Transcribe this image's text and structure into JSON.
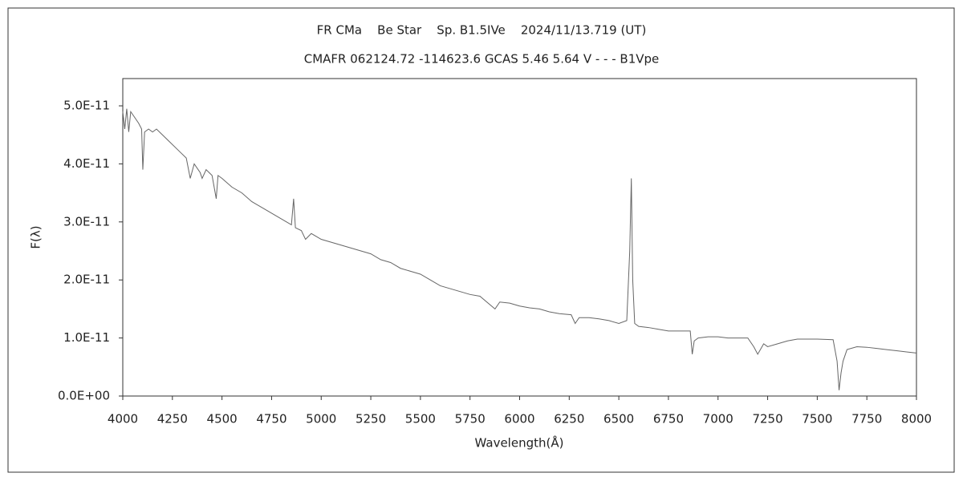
{
  "chart_data": {
    "type": "line",
    "title": "FR CMa    Be Star    Sp. B1.5IVe    2024/11/13.719 (UT)",
    "subtitle": "CMAFR 062124.72 -114623.6 GCAS 5.46 5.64 V - - - B1Vpe",
    "x_label": "Wavelength(Å)",
    "y_label": "F(λ)",
    "xlim": [
      4000,
      8000
    ],
    "ylim": [
      0,
      5.47e-11
    ],
    "xticks": [
      4000,
      4250,
      4500,
      4750,
      5000,
      5250,
      5500,
      5750,
      6000,
      6250,
      6500,
      6750,
      7000,
      7250,
      7500,
      7750,
      8000
    ],
    "yticks": [
      {
        "value": 0,
        "label": "0.0E+00"
      },
      {
        "value": 1e-11,
        "label": "1.0E-11"
      },
      {
        "value": 2e-11,
        "label": "2.0E-11"
      },
      {
        "value": 3e-11,
        "label": "3.0E-11"
      },
      {
        "value": 4e-11,
        "label": "4.0E-11"
      },
      {
        "value": 5e-11,
        "label": "5.0E-11"
      }
    ],
    "grid": false,
    "series": [
      {
        "color": "#666666",
        "x": [
          4000,
          4010,
          4020,
          4030,
          4040,
          4060,
          4080,
          4095,
          4101,
          4110,
          4130,
          4150,
          4170,
          4200,
          4230,
          4260,
          4290,
          4320,
          4340,
          4360,
          4390,
          4400,
          4420,
          4450,
          4471,
          4480,
          4500,
          4550,
          4600,
          4650,
          4700,
          4750,
          4800,
          4850,
          4861,
          4870,
          4900,
          4921,
          4950,
          5000,
          5050,
          5100,
          5150,
          5200,
          5250,
          5300,
          5350,
          5400,
          5450,
          5500,
          5550,
          5600,
          5650,
          5700,
          5750,
          5800,
          5876,
          5900,
          5950,
          6000,
          6050,
          6100,
          6150,
          6200,
          6260,
          6280,
          6300,
          6350,
          6400,
          6450,
          6500,
          6540,
          6555,
          6563,
          6570,
          6580,
          6600,
          6650,
          6700,
          6750,
          6800,
          6860,
          6870,
          6880,
          6900,
          6950,
          7000,
          7050,
          7100,
          7150,
          7180,
          7200,
          7230,
          7250,
          7300,
          7350,
          7400,
          7450,
          7500,
          7580,
          7600,
          7610,
          7620,
          7630,
          7650,
          7700,
          7750,
          7800,
          7850,
          7900,
          7950,
          8000
        ],
        "values": [
          4.9e-11,
          4.6e-11,
          4.95e-11,
          4.55e-11,
          4.9e-11,
          4.8e-11,
          4.7e-11,
          4.6e-11,
          3.9e-11,
          4.55e-11,
          4.6e-11,
          4.55e-11,
          4.6e-11,
          4.5e-11,
          4.4e-11,
          4.3e-11,
          4.2e-11,
          4.1e-11,
          3.75e-11,
          4e-11,
          3.85e-11,
          3.75e-11,
          3.9e-11,
          3.8e-11,
          3.4e-11,
          3.8e-11,
          3.75e-11,
          3.6e-11,
          3.5e-11,
          3.35e-11,
          3.25e-11,
          3.15e-11,
          3.05e-11,
          2.95e-11,
          3.4e-11,
          2.9e-11,
          2.85e-11,
          2.7e-11,
          2.8e-11,
          2.7e-11,
          2.65e-11,
          2.6e-11,
          2.55e-11,
          2.5e-11,
          2.45e-11,
          2.35e-11,
          2.3e-11,
          2.2e-11,
          2.15e-11,
          2.1e-11,
          2e-11,
          1.9e-11,
          1.85e-11,
          1.8e-11,
          1.75e-11,
          1.72e-11,
          1.5e-11,
          1.62e-11,
          1.6e-11,
          1.55e-11,
          1.52e-11,
          1.5e-11,
          1.45e-11,
          1.42e-11,
          1.4e-11,
          1.25e-11,
          1.35e-11,
          1.35e-11,
          1.33e-11,
          1.3e-11,
          1.25e-11,
          1.3e-11,
          2.5e-11,
          3.75e-11,
          2e-11,
          1.25e-11,
          1.2e-11,
          1.18e-11,
          1.15e-11,
          1.12e-11,
          1.12e-11,
          1.12e-11,
          7.2e-12,
          9.5e-12,
          1e-11,
          1.02e-11,
          1.02e-11,
          1e-11,
          1e-11,
          1e-11,
          8.5e-12,
          7.2e-12,
          9e-12,
          8.5e-12,
          9e-12,
          9.5e-12,
          9.8e-12,
          9.8e-12,
          9.8e-12,
          9.7e-12,
          6e-12,
          1e-12,
          4e-12,
          6e-12,
          8e-12,
          8.5e-12,
          8.4e-12,
          8.2e-12,
          8e-12,
          7.8e-12,
          7.6e-12,
          7.4e-12
        ]
      }
    ]
  }
}
